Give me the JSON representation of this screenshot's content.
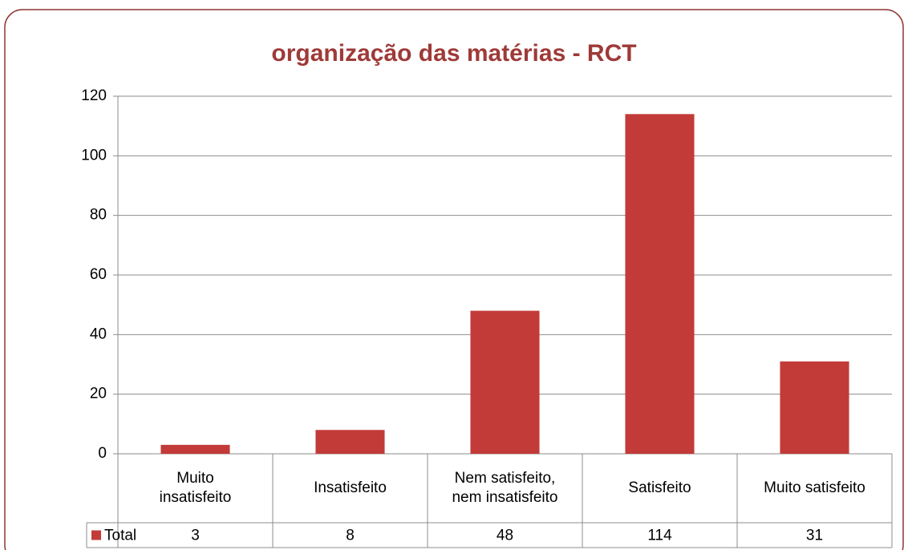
{
  "chart_data": {
    "type": "bar",
    "title": "organização das matérias - RCT",
    "categories": [
      "Muito insatisfeito",
      "Insatisfeito",
      "Nem satisfeito, nem insatisfeito",
      "Satisfeito",
      "Muito satisfeito"
    ],
    "series": [
      {
        "name": "Total",
        "color": "#c23b38",
        "values": [
          3,
          8,
          48,
          114,
          31
        ]
      }
    ],
    "ylim": [
      0,
      120
    ],
    "yticks": [
      0,
      20,
      40,
      60,
      80,
      100,
      120
    ],
    "grid": true,
    "data_table": true
  }
}
